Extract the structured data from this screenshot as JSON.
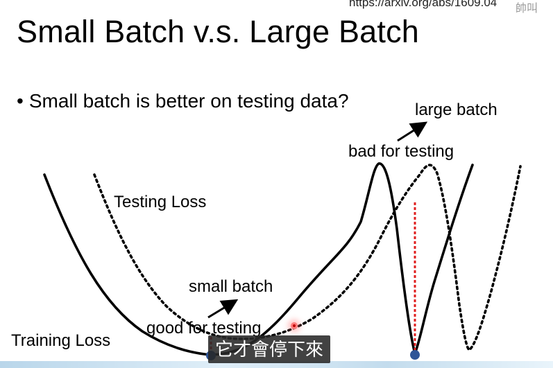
{
  "slide": {
    "url": "https://arxiv.org/abs/1609.04",
    "url_overlay": "帥叫",
    "title": "Small Batch v.s. Large Batch",
    "bullet_marker": "•",
    "bullet": "Small batch is better on testing data?"
  },
  "diagram": {
    "testing_loss_label": "Testing Loss",
    "training_loss_label": "Training Loss",
    "small_batch_label": "small batch",
    "good_for_testing_label": "good for testing",
    "large_batch_label": "large batch",
    "bad_for_testing_label": "bad for testing"
  },
  "overlay": {
    "subtitle": "它才會停下來"
  },
  "colors": {
    "curve": "#000000",
    "minimum_dot": "#2e5597",
    "gap_line": "#e02020"
  }
}
